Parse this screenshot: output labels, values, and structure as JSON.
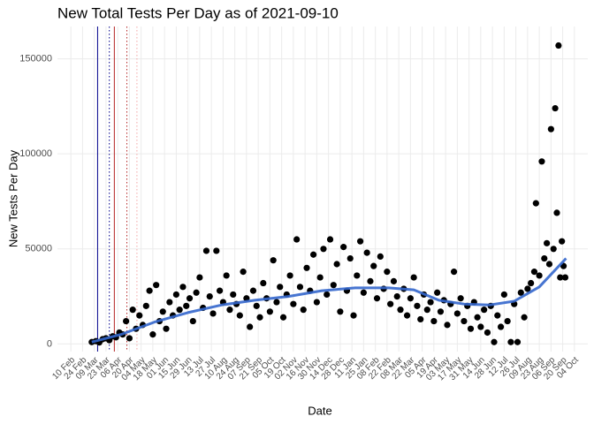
{
  "chart_data": {
    "type": "scatter",
    "title": "New Total Tests Per Day as of 2021-09-10",
    "x_label": "Date",
    "y_label": "New Tests Per Day",
    "xlim": [
      -16,
      618
    ],
    "ylim": [
      -4000,
      167000
    ],
    "yticks": [
      0,
      50000,
      100000,
      150000
    ],
    "xticks": [
      {
        "value": 0,
        "label": "10 Feb"
      },
      {
        "value": 14,
        "label": "24 Feb"
      },
      {
        "value": 28,
        "label": "09 Mar"
      },
      {
        "value": 42,
        "label": "23 Mar"
      },
      {
        "value": 56,
        "label": "06 Apr"
      },
      {
        "value": 70,
        "label": "20 Apr"
      },
      {
        "value": 84,
        "label": "04 May"
      },
      {
        "value": 98,
        "label": "18 May"
      },
      {
        "value": 112,
        "label": "01 Jun"
      },
      {
        "value": 126,
        "label": "15 Jun"
      },
      {
        "value": 140,
        "label": "29 Jun"
      },
      {
        "value": 154,
        "label": "13 Jul"
      },
      {
        "value": 168,
        "label": "27 Jul"
      },
      {
        "value": 182,
        "label": "10 Aug"
      },
      {
        "value": 196,
        "label": "24 Aug"
      },
      {
        "value": 210,
        "label": "07 Sep"
      },
      {
        "value": 224,
        "label": "21 Sep"
      },
      {
        "value": 238,
        "label": "05 Oct"
      },
      {
        "value": 252,
        "label": "19 Oct"
      },
      {
        "value": 266,
        "label": "02 Nov"
      },
      {
        "value": 280,
        "label": "16 Nov"
      },
      {
        "value": 294,
        "label": "30 Nov"
      },
      {
        "value": 308,
        "label": "14 Dec"
      },
      {
        "value": 322,
        "label": "28 Dec"
      },
      {
        "value": 336,
        "label": "11 Jan"
      },
      {
        "value": 350,
        "label": "25 Jan"
      },
      {
        "value": 364,
        "label": "08 Feb"
      },
      {
        "value": 378,
        "label": "22 Feb"
      },
      {
        "value": 392,
        "label": "08 Mar"
      },
      {
        "value": 406,
        "label": "22 Mar"
      },
      {
        "value": 420,
        "label": "05 Apr"
      },
      {
        "value": 434,
        "label": "19 Apr"
      },
      {
        "value": 448,
        "label": "03 May"
      },
      {
        "value": 462,
        "label": "17 May"
      },
      {
        "value": 476,
        "label": "31 May"
      },
      {
        "value": 490,
        "label": "14 Jun"
      },
      {
        "value": 504,
        "label": "28 Jun"
      },
      {
        "value": 518,
        "label": "12 Jul"
      },
      {
        "value": 532,
        "label": "26 Jul"
      },
      {
        "value": 546,
        "label": "09 Aug"
      },
      {
        "value": 560,
        "label": "23 Aug"
      },
      {
        "value": 574,
        "label": "06 Sep"
      },
      {
        "value": 588,
        "label": "20 Sep"
      },
      {
        "value": 602,
        "label": "04 Oct"
      }
    ],
    "grid": true,
    "vlines": [
      {
        "x": 32,
        "color": "#00008b",
        "dashed": false
      },
      {
        "x": 46,
        "color": "#00008b",
        "dashed": true
      },
      {
        "x": 52,
        "color": "#b22222",
        "dashed": false
      },
      {
        "x": 67,
        "color": "#b22222",
        "dashed": true
      },
      {
        "x": 79,
        "color": "#f4a6a6",
        "dashed": true
      }
    ],
    "series": [
      {
        "color": "#000000",
        "x": [
          25,
          30,
          34,
          38,
          42,
          46,
          50,
          54,
          58,
          62,
          66,
          70,
          74,
          78,
          82,
          86,
          90,
          94,
          98,
          102,
          106,
          110,
          114,
          118,
          122,
          126,
          130,
          134,
          138,
          142,
          146,
          150,
          154,
          158,
          162,
          166,
          170,
          174,
          178,
          182,
          186,
          190,
          194,
          198,
          202,
          206,
          210,
          214,
          218,
          222,
          226,
          230,
          234,
          238,
          242,
          246,
          250,
          254,
          258,
          262,
          266,
          270,
          274,
          278,
          282,
          286,
          290,
          294,
          298,
          302,
          306,
          310,
          314,
          318,
          322,
          326,
          330,
          334,
          338,
          342,
          346,
          350,
          354,
          358,
          362,
          366,
          370,
          374,
          378,
          382,
          386,
          390,
          394,
          398,
          402,
          406,
          410,
          414,
          418,
          422,
          426,
          430,
          434,
          438,
          442,
          446,
          450,
          454,
          458,
          462,
          466,
          470,
          474,
          478,
          482,
          486,
          490,
          494,
          498,
          502,
          506,
          510,
          514,
          518,
          522,
          526,
          530,
          534,
          538,
          542,
          546,
          550,
          554,
          556,
          560,
          563,
          566,
          569,
          572,
          574,
          577,
          579,
          581,
          583,
          585,
          587,
          589,
          591
        ],
        "values": [
          1000,
          1500,
          800,
          2500,
          3000,
          2000,
          4000,
          3500,
          6000,
          5000,
          12000,
          3000,
          18000,
          8000,
          15000,
          10000,
          20000,
          28000,
          5000,
          31000,
          12000,
          17000,
          8000,
          22000,
          15000,
          26000,
          18000,
          30000,
          20000,
          24000,
          12000,
          27000,
          35000,
          19000,
          49000,
          25000,
          16000,
          49000,
          28000,
          22000,
          36000,
          18000,
          26000,
          21000,
          15000,
          38000,
          24000,
          9000,
          28000,
          20000,
          14000,
          32000,
          24000,
          17000,
          44000,
          22000,
          30000,
          14000,
          26000,
          36000,
          21000,
          55000,
          30000,
          18000,
          40000,
          28000,
          47000,
          22000,
          35000,
          50000,
          26000,
          55000,
          31000,
          42000,
          17000,
          51000,
          28000,
          45000,
          15000,
          36000,
          54000,
          27000,
          48000,
          33000,
          41000,
          24000,
          46000,
          29000,
          38000,
          21000,
          33000,
          25000,
          18000,
          29000,
          15000,
          24000,
          35000,
          20000,
          13000,
          26000,
          18000,
          22000,
          12000,
          27000,
          17000,
          23000,
          10000,
          21000,
          38000,
          16000,
          24000,
          12000,
          20000,
          8000,
          22000,
          14000,
          9000,
          18000,
          6000,
          20000,
          1000,
          15000,
          9000,
          26000,
          12000,
          1000,
          21000,
          1000,
          27000,
          14000,
          29000,
          32000,
          38000,
          74000,
          36000,
          96000,
          45000,
          53000,
          42000,
          113000,
          50000,
          124000,
          69000,
          157000,
          35000,
          54000,
          41000,
          35000
        ]
      },
      {
        "color": "#3366cc",
        "type": "line",
        "x": [
          25,
          60,
          100,
          140,
          180,
          220,
          260,
          300,
          340,
          380,
          410,
          440,
          470,
          500,
          530,
          560,
          592
        ],
        "values": [
          1000,
          5000,
          11500,
          16500,
          20500,
          23000,
          25000,
          28000,
          29500,
          29500,
          28500,
          23000,
          21000,
          20500,
          22500,
          30000,
          45000
        ]
      }
    ]
  }
}
